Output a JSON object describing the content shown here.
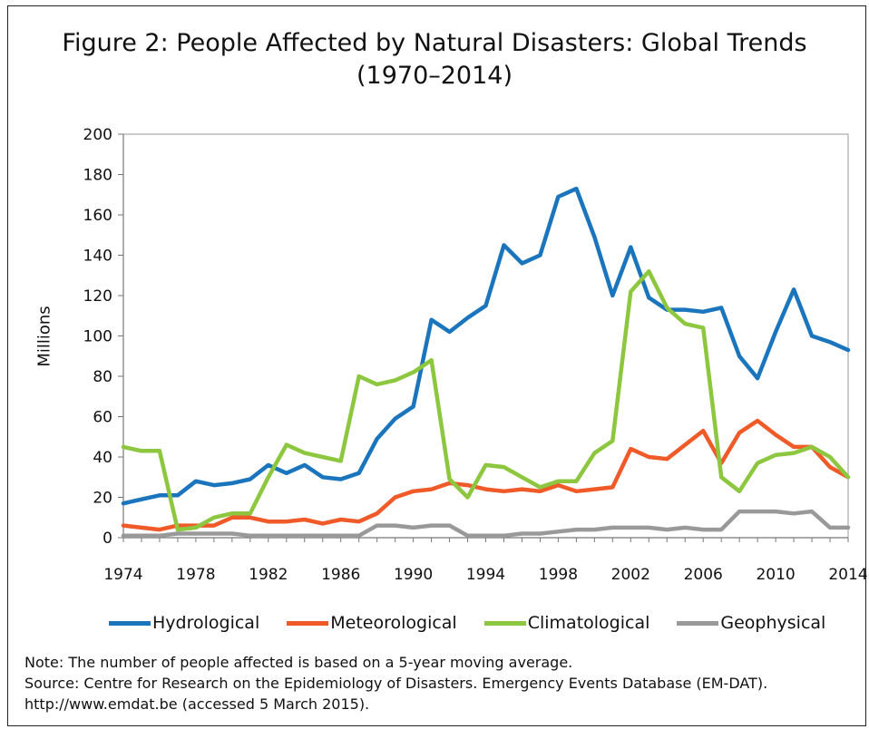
{
  "title_line1": "Figure 2:  People Affected by Natural Disasters: Global Trends",
  "title_line2": "(1970–2014)",
  "notes": {
    "note": "Note: The number of people affected is based on a 5-year moving average.",
    "source": "Source: Centre for Research on the Epidemiology of Disasters. Emergency Events Database (EM-DAT).",
    "url": "http://www.emdat.be (accessed 5 March 2015)."
  },
  "chart_data": {
    "type": "line",
    "title": "Figure 2:  People Affected by Natural Disasters: Global Trends (1970–2014)",
    "xlabel": "",
    "ylabel": "Millions",
    "ylim": [
      0,
      200
    ],
    "xlim": [
      1974,
      2014
    ],
    "yticks": [
      "0",
      "20",
      "40",
      "60",
      "80",
      "100",
      "120",
      "140",
      "160",
      "180",
      "200"
    ],
    "xticks": [
      "1974",
      "1978",
      "1982",
      "1986",
      "1990",
      "1994",
      "1998",
      "2002",
      "2006",
      "2010",
      "2014"
    ],
    "legend_position": "bottom",
    "grid": false,
    "x": [
      1974,
      1975,
      1976,
      1977,
      1978,
      1979,
      1980,
      1981,
      1982,
      1983,
      1984,
      1985,
      1986,
      1987,
      1988,
      1989,
      1990,
      1991,
      1992,
      1993,
      1994,
      1995,
      1996,
      1997,
      1998,
      1999,
      2000,
      2001,
      2002,
      2003,
      2004,
      2005,
      2006,
      2007,
      2008,
      2009,
      2010,
      2011,
      2012,
      2013,
      2014
    ],
    "series": [
      {
        "name": "Hydrological",
        "color": "#1b75bc",
        "values": [
          17,
          19,
          21,
          21,
          28,
          26,
          27,
          29,
          36,
          32,
          36,
          30,
          29,
          32,
          49,
          59,
          65,
          108,
          102,
          109,
          115,
          145,
          136,
          140,
          169,
          173,
          149,
          120,
          144,
          119,
          113,
          113,
          112,
          114,
          90,
          79,
          102,
          123,
          100,
          97,
          93
        ]
      },
      {
        "name": "Meteorological",
        "color": "#ef5a28",
        "values": [
          6,
          5,
          4,
          6,
          6,
          6,
          10,
          10,
          8,
          8,
          9,
          7,
          9,
          8,
          12,
          20,
          23,
          24,
          27,
          26,
          24,
          23,
          24,
          23,
          26,
          23,
          24,
          25,
          44,
          40,
          39,
          46,
          53,
          37,
          52,
          58,
          51,
          45,
          45,
          35,
          30
        ]
      },
      {
        "name": "Climatological",
        "color": "#8dc63f",
        "values": [
          45,
          43,
          43,
          4,
          5,
          10,
          12,
          12,
          30,
          46,
          42,
          40,
          38,
          80,
          76,
          78,
          82,
          88,
          29,
          20,
          36,
          35,
          30,
          25,
          28,
          28,
          42,
          48,
          122,
          132,
          114,
          106,
          104,
          30,
          23,
          37,
          41,
          42,
          45,
          40,
          30
        ]
      },
      {
        "name": "Geophysical",
        "color": "#999999",
        "values": [
          1,
          1,
          1,
          2,
          2,
          2,
          2,
          1,
          1,
          1,
          1,
          1,
          1,
          1,
          6,
          6,
          5,
          6,
          6,
          1,
          1,
          1,
          2,
          2,
          3,
          4,
          4,
          5,
          5,
          5,
          4,
          5,
          4,
          4,
          13,
          13,
          13,
          12,
          13,
          5,
          5
        ]
      }
    ]
  }
}
